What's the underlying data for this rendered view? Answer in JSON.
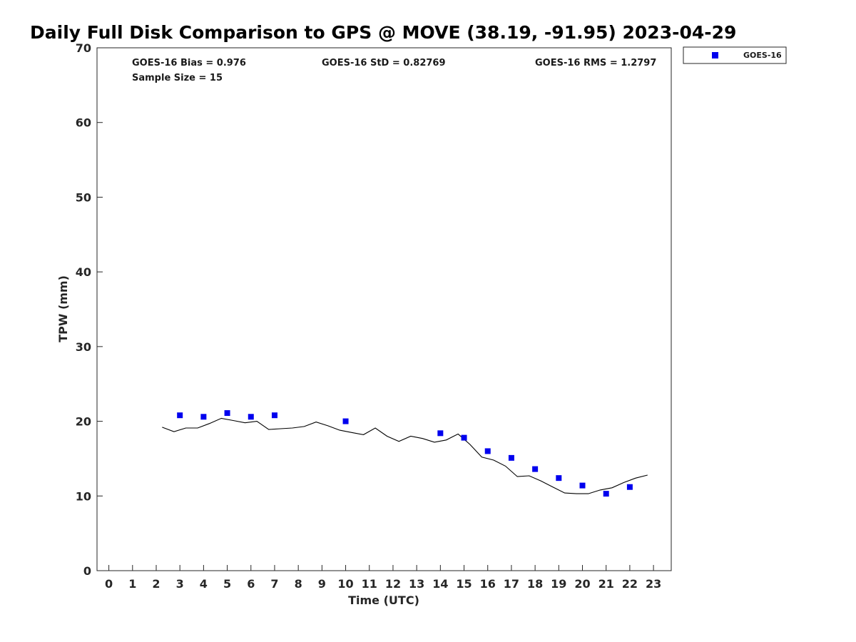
{
  "chart_data": {
    "type": "scatter",
    "title": "Daily Full Disk Comparison to GPS @ MOVE (38.19, -91.95) 2023-04-29",
    "xlabel": "Time (UTC)",
    "ylabel": "TPW (mm)",
    "xlim": [
      -0.5,
      23.75
    ],
    "ylim": [
      0,
      70
    ],
    "x_ticks": [
      0,
      1,
      2,
      3,
      4,
      5,
      6,
      7,
      8,
      9,
      10,
      11,
      12,
      13,
      14,
      15,
      16,
      17,
      18,
      19,
      20,
      21,
      22,
      23
    ],
    "y_ticks": [
      0,
      10,
      20,
      30,
      40,
      50,
      60,
      70
    ],
    "grid": false,
    "legend_position": "top-right, outside plot",
    "stats": {
      "bias": "GOES-16 Bias = 0.976",
      "std": "GOES-16 StD = 0.82769",
      "rms": "GOES-16 RMS = 1.2797",
      "sample": "Sample Size = 15"
    },
    "series": [
      {
        "name": "GOES-16",
        "kind": "scatter",
        "marker": "square",
        "color": "#0000ee",
        "x": [
          3,
          4,
          5,
          6,
          7,
          10,
          14,
          15,
          16,
          17,
          18,
          19,
          20,
          21,
          22
        ],
        "y": [
          20.8,
          20.6,
          21.1,
          20.6,
          20.8,
          20.0,
          18.4,
          17.8,
          16.0,
          15.1,
          13.6,
          12.4,
          11.4,
          10.3,
          11.2
        ]
      },
      {
        "kind": "line",
        "color": "#000000",
        "x": [
          2.25,
          2.75,
          3.25,
          3.75,
          4.25,
          4.75,
          5.25,
          5.75,
          6.25,
          6.75,
          7.25,
          7.75,
          8.25,
          8.75,
          9.25,
          9.75,
          10.25,
          10.75,
          11.25,
          11.75,
          12.25,
          12.75,
          13.25,
          13.75,
          14.25,
          14.75,
          15.25,
          15.75,
          16.25,
          16.75,
          17.25,
          17.75,
          18.25,
          18.75,
          19.25,
          19.75,
          20.25,
          20.75,
          21.25,
          21.75,
          22.25,
          22.75
        ],
        "y": [
          19.2,
          18.6,
          19.1,
          19.1,
          19.7,
          20.4,
          20.1,
          19.8,
          20.0,
          18.9,
          19.0,
          19.1,
          19.3,
          19.9,
          19.4,
          18.8,
          18.5,
          18.2,
          19.1,
          18.0,
          17.3,
          18.0,
          17.7,
          17.2,
          17.5,
          18.3,
          16.9,
          15.2,
          14.8,
          14.0,
          12.6,
          12.7,
          12.0,
          11.2,
          10.4,
          10.3,
          10.3,
          10.8,
          11.1,
          11.8,
          12.4,
          12.8
        ]
      }
    ]
  }
}
